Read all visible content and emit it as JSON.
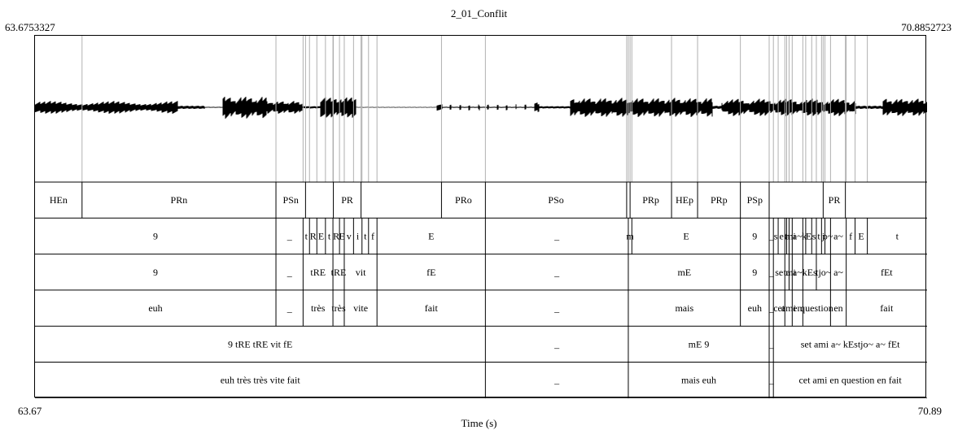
{
  "header": {
    "title": "2_01_Conflit",
    "start_time": "63.6753327",
    "end_time": "70.8852723"
  },
  "axis": {
    "start": "63.67",
    "end": "70.89",
    "xlabel": "Time (s)"
  },
  "tiers": [
    {
      "name": "tier-1",
      "segments": [
        {
          "t0": 63.6753,
          "t1": 63.7098,
          "label": "HEn"
        },
        {
          "t0": 63.7098,
          "t1": 63.852,
          "label": "PRn"
        },
        {
          "t0": 63.852,
          "t1": 63.8737,
          "label": "PSn"
        },
        {
          "t0": 63.8737,
          "t1": 63.8941,
          "label": ""
        },
        {
          "t0": 63.8941,
          "t1": 63.9144,
          "label": "PR"
        },
        {
          "t0": 63.9144,
          "t1": 63.9734,
          "label": ""
        },
        {
          "t0": 63.9734,
          "t1": 64.0056,
          "label": "PRo"
        },
        {
          "t0": 64.0056,
          "t1": 64.1092,
          "label": "PSo"
        },
        {
          "t0": 64.1092,
          "t1": 64.1117,
          "label": ""
        },
        {
          "t0": 64.1117,
          "t1": 64.1421,
          "label": "PRp"
        },
        {
          "t0": 64.1421,
          "t1": 64.1612,
          "label": "HEp"
        },
        {
          "t0": 64.1612,
          "t1": 64.1926,
          "label": "PRp"
        },
        {
          "t0": 64.1926,
          "t1": 64.2137,
          "label": "PSp"
        },
        {
          "t0": 64.2137,
          "t1": 64.2533,
          "label": ""
        },
        {
          "t0": 64.2533,
          "t1": 64.2696,
          "label": "PR"
        },
        {
          "t0": 64.2696,
          "t1": 64.3295,
          "label": ""
        }
      ]
    },
    {
      "name": "tier-2",
      "segments": [
        {
          "t0": 63.6753,
          "t1": 63.852,
          "label": "9"
        },
        {
          "t0": 63.852,
          "t1": 63.8719,
          "label": "_"
        },
        {
          "t0": 63.8719,
          "t1": 63.8766,
          "label": "t"
        },
        {
          "t0": 63.8766,
          "t1": 63.882,
          "label": "R"
        },
        {
          "t0": 63.882,
          "t1": 63.8883,
          "label": "E"
        },
        {
          "t0": 63.8883,
          "t1": 63.8938,
          "label": "t"
        },
        {
          "t0": 63.8938,
          "t1": 63.8986,
          "label": "R"
        },
        {
          "t0": 63.8986,
          "t1": 63.9021,
          "label": "E"
        },
        {
          "t0": 63.9021,
          "t1": 63.9089,
          "label": "v"
        },
        {
          "t0": 63.9089,
          "t1": 63.9151,
          "label": "i"
        },
        {
          "t0": 63.9151,
          "t1": 63.9199,
          "label": "t"
        },
        {
          "t0": 63.9199,
          "t1": 63.9261,
          "label": "f"
        },
        {
          "t0": 63.9261,
          "t1": 64.0056,
          "label": "E"
        },
        {
          "t0": 64.0056,
          "t1": 64.1104,
          "label": "_"
        },
        {
          "t0": 64.1104,
          "t1": 64.113,
          "label": "m"
        },
        {
          "t0": 64.113,
          "t1": 64.1926,
          "label": "E"
        },
        {
          "t0": 64.1926,
          "t1": 64.2137,
          "label": "9"
        },
        {
          "t0": 64.2137,
          "t1": 64.2168,
          "label": "_"
        },
        {
          "t0": 64.2168,
          "t1": 64.2203,
          "label": "s"
        },
        {
          "t0": 64.2203,
          "t1": 64.2252,
          "label": "e"
        },
        {
          "t0": 64.2252,
          "t1": 64.2265,
          "label": "t"
        },
        {
          "t0": 64.2265,
          "t1": 64.2283,
          "label": "a"
        },
        {
          "t0": 64.2283,
          "t1": 64.2306,
          "label": "mi"
        },
        {
          "t0": 64.2306,
          "t1": 64.2384,
          "label": "a~"
        },
        {
          "t0": 64.2384,
          "t1": 64.2405,
          "label": "k"
        },
        {
          "t0": 64.2405,
          "t1": 64.2449,
          "label": "E"
        },
        {
          "t0": 64.2449,
          "t1": 64.2483,
          "label": "s"
        },
        {
          "t0": 64.2483,
          "t1": 64.2521,
          "label": "t"
        },
        {
          "t0": 64.2521,
          "t1": 64.2546,
          "label": "j"
        },
        {
          "t0": 64.2546,
          "t1": 64.2587,
          "label": "o~"
        },
        {
          "t0": 64.2587,
          "t1": 64.2702,
          "label": "a~"
        },
        {
          "t0": 64.2702,
          "t1": 64.2767,
          "label": "f"
        },
        {
          "t0": 64.2767,
          "t1": 64.2857,
          "label": "E"
        },
        {
          "t0": 64.2857,
          "t1": 64.3295,
          "label": "t"
        }
      ]
    },
    {
      "name": "tier-3",
      "segments": [
        {
          "t0": 63.6753,
          "t1": 63.852,
          "label": "9"
        },
        {
          "t0": 63.852,
          "t1": 63.8719,
          "label": "_"
        },
        {
          "t0": 63.8719,
          "t1": 63.8938,
          "label": "tRE"
        },
        {
          "t0": 63.8938,
          "t1": 63.9021,
          "label": "tRE"
        },
        {
          "t0": 63.9021,
          "t1": 63.9261,
          "label": "vit"
        },
        {
          "t0": 63.9261,
          "t1": 64.0056,
          "label": "fE"
        },
        {
          "t0": 64.0056,
          "t1": 64.1104,
          "label": "_"
        },
        {
          "t0": 64.1104,
          "t1": 64.1926,
          "label": "mE"
        },
        {
          "t0": 64.1926,
          "t1": 64.2137,
          "label": "9"
        },
        {
          "t0": 64.2137,
          "t1": 64.2168,
          "label": "_"
        },
        {
          "t0": 64.2168,
          "t1": 64.2252,
          "label": "se"
        },
        {
          "t0": 64.2252,
          "t1": 64.2283,
          "label": "ta"
        },
        {
          "t0": 64.2283,
          "t1": 64.2306,
          "label": "mi"
        },
        {
          "t0": 64.2306,
          "t1": 64.2384,
          "label": "a~"
        },
        {
          "t0": 64.2384,
          "t1": 64.2483,
          "label": "kEs"
        },
        {
          "t0": 64.2483,
          "t1": 64.2587,
          "label": "tjo~"
        },
        {
          "t0": 64.2587,
          "t1": 64.2702,
          "label": "a~"
        },
        {
          "t0": 64.2702,
          "t1": 64.3295,
          "label": "fEt"
        }
      ]
    },
    {
      "name": "tier-4",
      "segments": [
        {
          "t0": 63.6753,
          "t1": 63.852,
          "label": "euh"
        },
        {
          "t0": 63.852,
          "t1": 63.8719,
          "label": "_"
        },
        {
          "t0": 63.8719,
          "t1": 63.8938,
          "label": "très"
        },
        {
          "t0": 63.8938,
          "t1": 63.9021,
          "label": "très"
        },
        {
          "t0": 63.9021,
          "t1": 63.9261,
          "label": "vite"
        },
        {
          "t0": 63.9261,
          "t1": 64.0056,
          "label": "fait"
        },
        {
          "t0": 64.0056,
          "t1": 64.1104,
          "label": "_"
        },
        {
          "t0": 64.1104,
          "t1": 64.1926,
          "label": "mais"
        },
        {
          "t0": 64.1926,
          "t1": 64.2137,
          "label": "euh"
        },
        {
          "t0": 64.2137,
          "t1": 64.2168,
          "label": "_"
        },
        {
          "t0": 64.2168,
          "t1": 64.2252,
          "label": "cet"
        },
        {
          "t0": 64.2252,
          "t1": 64.2306,
          "label": "ami"
        },
        {
          "t0": 64.2306,
          "t1": 64.2384,
          "label": "en"
        },
        {
          "t0": 64.2384,
          "t1": 64.2587,
          "label": "question"
        },
        {
          "t0": 64.2587,
          "t1": 64.2702,
          "label": "en"
        },
        {
          "t0": 64.2702,
          "t1": 64.3295,
          "label": "fait"
        }
      ]
    },
    {
      "name": "tier-5",
      "segments": [
        {
          "t0": 63.6753,
          "t1": 64.0056,
          "label": "9 tRE tRE vit fE"
        },
        {
          "t0": 64.0056,
          "t1": 64.1104,
          "label": "_"
        },
        {
          "t0": 64.1104,
          "t1": 64.2137,
          "label": "mE 9"
        },
        {
          "t0": 64.2137,
          "t1": 64.2168,
          "label": "_"
        },
        {
          "t0": 64.2168,
          "t1": 64.3295,
          "label": "set ami a~ kEstjo~ a~ fEt"
        }
      ]
    },
    {
      "name": "tier-6",
      "segments": [
        {
          "t0": 63.6753,
          "t1": 64.0056,
          "label": "euh très très vite fait"
        },
        {
          "t0": 64.0056,
          "t1": 64.1104,
          "label": "_"
        },
        {
          "t0": 64.1104,
          "t1": 64.2137,
          "label": "mais euh"
        },
        {
          "t0": 64.2137,
          "t1": 64.2168,
          "label": "_"
        },
        {
          "t0": 64.2168,
          "t1": 64.3295,
          "label": "cet ami en question en fait"
        }
      ]
    }
  ]
}
